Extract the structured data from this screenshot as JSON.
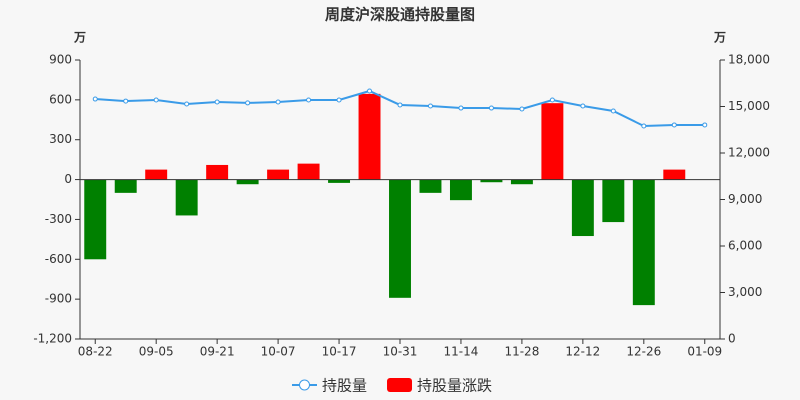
{
  "chart_data": {
    "type": "bar-line",
    "title": "周度沪深股通持股量图",
    "y_unit": "万",
    "y2_unit": "万",
    "categories": [
      "08-22",
      null,
      "09-05",
      null,
      "09-21",
      null,
      "10-07",
      null,
      "10-17",
      null,
      "10-31",
      null,
      "11-14",
      null,
      "11-28",
      null,
      "12-12",
      null,
      "12-26",
      null,
      "01-09"
    ],
    "series": [
      {
        "name": "持股量",
        "type": "line",
        "axis": "y2",
        "color": "#3a9be8",
        "values": [
          15480,
          15350,
          15420,
          15160,
          15290,
          15230,
          15290,
          15420,
          15420,
          16000,
          15100,
          15030,
          14900,
          14900,
          14840,
          15420,
          15030,
          14710,
          13740,
          13810,
          13810
        ]
      },
      {
        "name": "持股量涨跌",
        "type": "bar",
        "color": "#ff0000",
        "negative_color": "#008000",
        "values": [
          -600,
          -100,
          75,
          -270,
          110,
          -35,
          75,
          120,
          -25,
          645,
          -890,
          -100,
          -155,
          -20,
          -35,
          575,
          -425,
          -320,
          -945,
          75,
          null
        ]
      }
    ],
    "ylim": [
      -1200,
      900
    ],
    "yticks": [
      {
        "value": -1200,
        "label": "-1,200"
      },
      -900,
      -600,
      -300,
      0,
      300,
      600,
      900
    ],
    "y2lim": [
      0,
      18000
    ],
    "y2ticks": [
      0,
      {
        "value": 3000,
        "label": "3,000"
      },
      {
        "value": 6000,
        "label": "6,000"
      },
      {
        "value": 9000,
        "label": "9,000"
      },
      {
        "value": 12000,
        "label": "12,000"
      },
      {
        "value": 15000,
        "label": "15,000"
      },
      {
        "value": 18000,
        "label": "18,000"
      }
    ]
  }
}
